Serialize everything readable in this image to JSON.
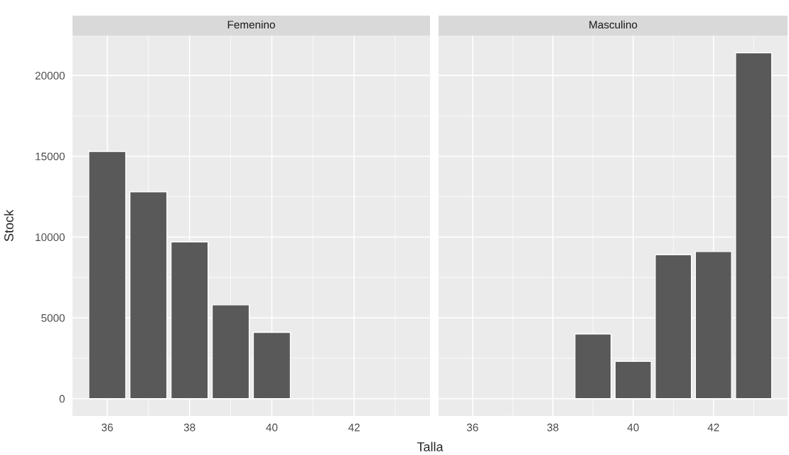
{
  "chart_data": [
    {
      "type": "bar",
      "title": "Femenino",
      "ylabel": "Stock",
      "xlabel": "Talla",
      "x": [
        36,
        37,
        38,
        39,
        40
      ],
      "values": [
        15300,
        12800,
        9700,
        5800,
        4100
      ],
      "color": "#595959",
      "xlim": [
        35.155,
        43.845
      ],
      "xticks": [
        36,
        38,
        40,
        42
      ],
      "ylim": [
        -1070,
        22470
      ],
      "yticks": [
        0,
        5000,
        10000,
        15000,
        20000
      ],
      "grid": true
    },
    {
      "type": "bar",
      "title": "Masculino",
      "x": [
        39,
        40,
        41,
        42,
        43
      ],
      "values": [
        4000,
        2300,
        8900,
        9100,
        21400
      ],
      "color": "#595959",
      "xlim": [
        35.155,
        43.845
      ],
      "xticks": [
        36,
        38,
        40,
        42
      ],
      "ylim": [
        -1070,
        22470
      ],
      "yticks": [
        0,
        5000,
        10000,
        15000,
        20000
      ],
      "grid": true,
      "tick_labels": "x"
    }
  ]
}
